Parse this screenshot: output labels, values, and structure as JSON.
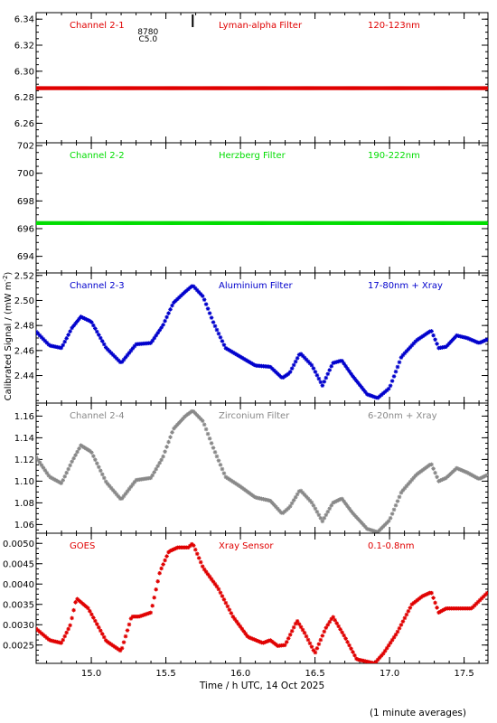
{
  "chart_data": {
    "type": "scatter",
    "xlabel": "Time / h UTC, 14 Oct 2025",
    "ylabel": "Calibrated Signal / (mW m",
    "ylabel_sup": "-2",
    "ylabel_close": ")",
    "footnote": "(1 minute averages)",
    "xlim": [
      14.63,
      17.66
    ],
    "x_ticks": [
      "15.0",
      "15.5",
      "16.0",
      "16.5",
      "17.0",
      "17.5"
    ],
    "panels": [
      {
        "channel": "Channel 2-1",
        "filter": "Lyman-alpha Filter",
        "range": "120-123nm",
        "color": "#e00000",
        "ylim": [
          6.245,
          6.345
        ],
        "yticks": [
          6.26,
          6.28,
          6.3,
          6.32,
          6.34
        ],
        "yticklabels": [
          "6.26",
          "6.28",
          "6.30",
          "6.32",
          "6.34"
        ],
        "annotation_lines": [
          "8780",
          "C5.0"
        ],
        "annotation_x": 15.38,
        "event_marker_x": 15.68,
        "series_x": [
          14.63,
          17.66
        ],
        "series_y": [
          6.287,
          6.287
        ]
      },
      {
        "channel": "Channel 2-2",
        "filter": "Herzberg Filter",
        "range": "190-222nm",
        "color": "#00dd00",
        "ylim": [
          692.8,
          702.2
        ],
        "yticks": [
          694,
          696,
          698,
          700,
          702
        ],
        "yticklabels": [
          "694",
          "696",
          "698",
          "700",
          "702"
        ],
        "series_x": [
          14.63,
          17.66
        ],
        "series_y": [
          696.4,
          696.4
        ]
      },
      {
        "channel": "Channel 2-3",
        "filter": "Aluminium Filter",
        "range": "17-80nm + Xray",
        "color": "#0000cc",
        "ylim": [
          2.418,
          2.522
        ],
        "yticks": [
          2.44,
          2.46,
          2.48,
          2.5,
          2.52
        ],
        "yticklabels": [
          "2.44",
          "2.46",
          "2.48",
          "2.50",
          "2.52"
        ],
        "series_x": [
          14.63,
          14.72,
          14.8,
          14.87,
          14.93,
          15.0,
          15.1,
          15.2,
          15.3,
          15.4,
          15.48,
          15.55,
          15.63,
          15.68,
          15.75,
          15.82,
          15.9,
          16.0,
          16.1,
          16.2,
          16.28,
          16.33,
          16.4,
          16.48,
          16.55,
          16.62,
          16.68,
          16.75,
          16.85,
          16.92,
          17.0,
          17.08,
          17.18,
          17.28,
          17.33,
          17.38,
          17.45,
          17.52,
          17.6,
          17.66
        ],
        "series_y": [
          2.475,
          2.464,
          2.462,
          2.478,
          2.487,
          2.483,
          2.462,
          2.45,
          2.465,
          2.466,
          2.48,
          2.498,
          2.507,
          2.512,
          2.503,
          2.482,
          2.462,
          2.455,
          2.448,
          2.447,
          2.438,
          2.442,
          2.458,
          2.448,
          2.432,
          2.45,
          2.452,
          2.44,
          2.425,
          2.422,
          2.43,
          2.455,
          2.468,
          2.476,
          2.462,
          2.463,
          2.472,
          2.47,
          2.466,
          2.469
        ]
      },
      {
        "channel": "Channel 2-4",
        "filter": "Zirconium Filter",
        "range": "6-20nm + Xray",
        "color": "#888888",
        "ylim": [
          1.052,
          1.172
        ],
        "yticks": [
          1.06,
          1.08,
          1.1,
          1.12,
          1.14,
          1.16
        ],
        "yticklabels": [
          "1.06",
          "1.08",
          "1.10",
          "1.12",
          "1.14",
          "1.16"
        ],
        "series_x": [
          14.63,
          14.72,
          14.8,
          14.87,
          14.93,
          15.0,
          15.1,
          15.2,
          15.3,
          15.4,
          15.48,
          15.55,
          15.63,
          15.68,
          15.75,
          15.82,
          15.9,
          16.0,
          16.1,
          16.2,
          16.28,
          16.33,
          16.4,
          16.48,
          16.55,
          16.62,
          16.68,
          16.75,
          16.85,
          16.92,
          17.0,
          17.08,
          17.18,
          17.28,
          17.33,
          17.38,
          17.45,
          17.52,
          17.6,
          17.66
        ],
        "series_y": [
          1.122,
          1.104,
          1.098,
          1.118,
          1.133,
          1.127,
          1.099,
          1.083,
          1.101,
          1.103,
          1.122,
          1.148,
          1.16,
          1.165,
          1.155,
          1.13,
          1.104,
          1.095,
          1.085,
          1.082,
          1.07,
          1.076,
          1.092,
          1.08,
          1.063,
          1.08,
          1.084,
          1.071,
          1.056,
          1.053,
          1.064,
          1.09,
          1.106,
          1.116,
          1.1,
          1.103,
          1.112,
          1.108,
          1.102,
          1.106
        ]
      },
      {
        "channel": "GOES",
        "filter": "Xray Sensor",
        "range": "0.1-0.8nm",
        "color": "#e00000",
        "ylim": [
          0.00205,
          0.00525
        ],
        "yticks": [
          0.0025,
          0.003,
          0.0035,
          0.004,
          0.0045,
          0.005
        ],
        "yticklabels": [
          "0.0025",
          "0.0030",
          "0.0035",
          "0.0040",
          "0.0045",
          "0.0050"
        ],
        "series_x": [
          14.63,
          14.72,
          14.8,
          14.86,
          14.9,
          14.98,
          15.1,
          15.2,
          15.27,
          15.32,
          15.4,
          15.46,
          15.52,
          15.58,
          15.65,
          15.68,
          15.75,
          15.85,
          15.95,
          16.05,
          16.15,
          16.2,
          16.25,
          16.3,
          16.38,
          16.43,
          16.5,
          16.57,
          16.62,
          16.7,
          16.78,
          16.9,
          16.96,
          17.05,
          17.15,
          17.22,
          17.28,
          17.33,
          17.38,
          17.45,
          17.55,
          17.66
        ],
        "series_y": [
          0.0029,
          0.00262,
          0.00255,
          0.003,
          0.00365,
          0.0034,
          0.0026,
          0.00235,
          0.0032,
          0.0032,
          0.0033,
          0.0043,
          0.0048,
          0.0049,
          0.0049,
          0.005,
          0.0044,
          0.0039,
          0.0032,
          0.0027,
          0.00255,
          0.00262,
          0.00248,
          0.0025,
          0.0031,
          0.0028,
          0.0023,
          0.0029,
          0.0032,
          0.0027,
          0.00215,
          0.00205,
          0.0023,
          0.0028,
          0.0035,
          0.0037,
          0.0038,
          0.0033,
          0.0034,
          0.0034,
          0.0034,
          0.0038
        ]
      }
    ]
  }
}
